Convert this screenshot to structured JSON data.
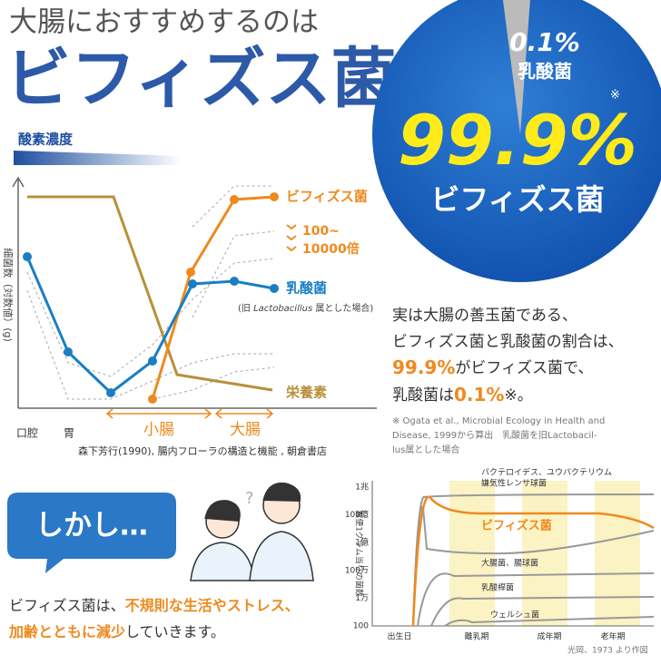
{
  "header": {
    "line1": "大腸におすすめするのは",
    "line2": "ビフィズス菌"
  },
  "circle": {
    "minor_percent": "0.1%",
    "minor_name": "乳酸菌",
    "note_mark": "※",
    "major_percent": "99.9%",
    "major_name": "ビフィズス菌"
  },
  "oxygen_chart": {
    "gradient_label": "酸素濃度",
    "y_label": "細菌数（対数値）(g)",
    "labels": {
      "bifido": "ビフィズス菌",
      "ratio_top": "100~",
      "ratio_bottom": "10000倍",
      "lactic": "乳酸菌",
      "lactic_note_pre": "(旧 ",
      "lactic_note_genus": "Lactobacillus",
      "lactic_note_post": " 属とした場合)",
      "nutrients": "栄養素"
    },
    "x_labels": {
      "mouth": "口腔",
      "stomach": "胃",
      "small_intestine": "小腸",
      "large_intestine": "大腸"
    },
    "source": "森下芳行(1990), 腸内フローラの構造と機能 , 朝倉書店"
  },
  "explanation": {
    "line1": "実は大腸の善玉菌である、",
    "line2": "ビフィズス菌と乳酸菌の割合は、",
    "line3": {
      "highlight": "99.9%",
      "rest": "がビフィズス菌で、"
    },
    "line4": {
      "pre": "乳酸菌は",
      "highlight": "0.1%",
      "post": "※。"
    },
    "note": [
      "※ Ogata et al., Microbial Ecology in Health and",
      "Disease, 1999から算出　乳酸菌を旧Lactobacil-",
      "lus属とした場合"
    ]
  },
  "however": {
    "bubble": "しかし…",
    "text1": {
      "pre": "ビフィズス菌は、",
      "highlight": "不規則な生活やストレス、"
    },
    "text2": {
      "highlight": "加齢とともに減少",
      "post": "していきます。"
    }
  },
  "age_chart": {
    "y_label": "糞便1グラム当りの菌数",
    "yticks": [
      "1兆",
      "100億",
      "1億",
      "100万",
      "1万",
      "100"
    ],
    "x_labels": [
      "出生日",
      "離乳期",
      "成年期",
      "老年期"
    ],
    "labels": {
      "bacteroides1": "バクテロイデス、ユウバクテリウム",
      "bacteroides2": "嫌気性レンサ球菌",
      "bifido": "ビフィズス菌",
      "ecoli": "大腸菌、腸球菌",
      "lacto": "乳酸桿菌",
      "welchii": "ウェルシュ菌"
    },
    "source": "光岡、1973 より作図"
  }
}
